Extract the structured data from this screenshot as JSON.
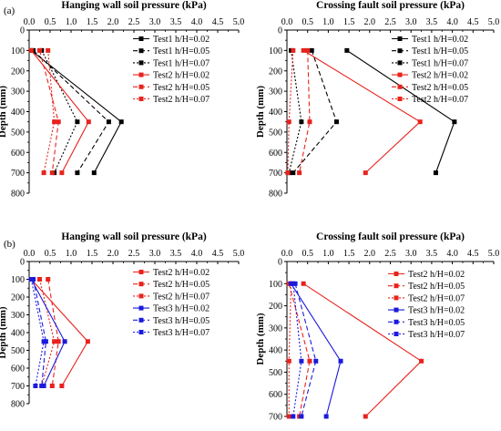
{
  "panels": [
    {
      "label": "(a)"
    },
    {
      "label": "(b)"
    }
  ],
  "chart_data": [
    {
      "type": "line",
      "title": "Hanging wall soil pressure (kPa)",
      "xlabel": "Hanging wall soil pressure (kPa)",
      "ylabel": "Depth (mm)",
      "xlim": [
        0,
        5
      ],
      "ylim": [
        0,
        800
      ],
      "xticks": [
        "0.0",
        "0.5",
        "1.0",
        "1.5",
        "2.0",
        "2.5",
        "3.0",
        "3.5",
        "4.0",
        "4.5",
        "5.0"
      ],
      "yticks": [
        "0",
        "100",
        "200",
        "300",
        "400",
        "500",
        "600",
        "700",
        "800"
      ],
      "legend_position": "top-right",
      "series": [
        {
          "name": "Test1 h/H=0.02",
          "color": "#000000",
          "dash": "solid",
          "x": [
            0.05,
            2.2,
            1.55
          ],
          "y": [
            100,
            450,
            700
          ]
        },
        {
          "name": "Test1 h/H=0.05",
          "color": "#000000",
          "dash": "dashed",
          "x": [
            0.1,
            1.9,
            1.15
          ],
          "y": [
            100,
            450,
            700
          ]
        },
        {
          "name": "Test1 h/H=0.07",
          "color": "#000000",
          "dash": "dotted",
          "x": [
            0.3,
            1.15,
            0.6
          ],
          "y": [
            100,
            450,
            700
          ]
        },
        {
          "name": "Test2 h/H=0.02",
          "color": "#e8221c",
          "dash": "solid",
          "x": [
            0.05,
            1.42,
            0.78
          ],
          "y": [
            100,
            450,
            700
          ]
        },
        {
          "name": "Test2 h/H=0.05",
          "color": "#e8221c",
          "dash": "dashed",
          "x": [
            0.25,
            0.7,
            0.55
          ],
          "y": [
            100,
            450,
            700
          ]
        },
        {
          "name": "Test2 h/H=0.07",
          "color": "#e8221c",
          "dash": "dotted",
          "x": [
            0.45,
            0.6,
            0.35
          ],
          "y": [
            100,
            450,
            700
          ]
        }
      ]
    },
    {
      "type": "line",
      "title": "Crossing fault soil pressure (kPa)",
      "xlabel": "Crossing fault soil pressure (kPa)",
      "ylabel": "Depth (mm)",
      "xlim": [
        0,
        5
      ],
      "ylim": [
        0,
        800
      ],
      "xticks": [
        "0.0",
        "0.5",
        "1.0",
        "1.5",
        "2.0",
        "2.5",
        "3.0",
        "3.5",
        "4.0",
        "4.5",
        "5.0"
      ],
      "yticks": [
        "0",
        "100",
        "200",
        "300",
        "400",
        "500",
        "600",
        "700",
        "800"
      ],
      "legend_position": "top-right",
      "series": [
        {
          "name": "Test1 h/H=0.02",
          "color": "#000000",
          "dash": "solid",
          "x": [
            1.45,
            4.05,
            3.6
          ],
          "y": [
            100,
            450,
            700
          ]
        },
        {
          "name": "Test1 h/H=0.05",
          "color": "#000000",
          "dash": "dashed",
          "x": [
            0.6,
            1.2,
            0.15
          ],
          "y": [
            100,
            450,
            700
          ]
        },
        {
          "name": "Test1 h/H=0.07",
          "color": "#000000",
          "dash": "dotted",
          "x": [
            0.1,
            0.35,
            0.05
          ],
          "y": [
            100,
            450,
            700
          ]
        },
        {
          "name": "Test2 h/H=0.02",
          "color": "#e8221c",
          "dash": "solid",
          "x": [
            0.4,
            3.22,
            1.9
          ],
          "y": [
            100,
            450,
            700
          ]
        },
        {
          "name": "Test2 h/H=0.05",
          "color": "#e8221c",
          "dash": "dashed",
          "x": [
            0.5,
            0.55,
            0.3
          ],
          "y": [
            100,
            450,
            700
          ]
        },
        {
          "name": "Test2 h/H=0.07",
          "color": "#e8221c",
          "dash": "dotted",
          "x": [
            0.15,
            0.05,
            0.02
          ],
          "y": [
            100,
            450,
            700
          ]
        }
      ]
    },
    {
      "type": "line",
      "title": "Hanging wall soil pressure (kPa)",
      "xlabel": "Hanging wall soil pressure (kPa)",
      "ylabel": "Depth (mm)",
      "xlim": [
        0,
        5
      ],
      "ylim": [
        0,
        800
      ],
      "xticks": [
        "0.0",
        "0.5",
        "1.0",
        "1.5",
        "2.0",
        "2.5",
        "3.0",
        "3.5",
        "4.0",
        "4.5",
        "5.0"
      ],
      "yticks": [
        "0",
        "100",
        "200",
        "300",
        "400",
        "500",
        "600",
        "700",
        "800"
      ],
      "legend_position": "top-right",
      "series": [
        {
          "name": "Test2 h/H=0.02",
          "color": "#e8221c",
          "dash": "solid",
          "x": [
            0.05,
            1.4,
            0.78
          ],
          "y": [
            100,
            450,
            700
          ]
        },
        {
          "name": "Test2 h/H=0.05",
          "color": "#e8221c",
          "dash": "dashed",
          "x": [
            0.45,
            0.7,
            0.55
          ],
          "y": [
            100,
            450,
            700
          ]
        },
        {
          "name": "Test2 h/H=0.07",
          "color": "#e8221c",
          "dash": "dotted",
          "x": [
            0.25,
            0.6,
            0.3
          ],
          "y": [
            100,
            450,
            700
          ]
        },
        {
          "name": "Test3 h/H=0.02",
          "color": "#1a1adc",
          "dash": "solid",
          "x": [
            0.05,
            0.85,
            0.35
          ],
          "y": [
            100,
            450,
            700
          ]
        },
        {
          "name": "Test3 h/H=0.05",
          "color": "#1a1adc",
          "dash": "dashed",
          "x": [
            0.1,
            0.4,
            0.3
          ],
          "y": [
            100,
            450,
            700
          ]
        },
        {
          "name": "Test3 h/H=0.07",
          "color": "#1a1adc",
          "dash": "dotted",
          "x": [
            0.05,
            0.35,
            0.15
          ],
          "y": [
            100,
            450,
            700
          ]
        }
      ]
    },
    {
      "type": "line",
      "title": "Crossing fault soil pressure (kPa)",
      "xlabel": "Crossing fault soil pressure (kPa)",
      "ylabel": "Depth (mm)",
      "xlim": [
        0,
        5
      ],
      "ylim": [
        0,
        700
      ],
      "xticks": [
        "0.0",
        "0.5",
        "1.0",
        "1.5",
        "2.0",
        "2.5",
        "3.0",
        "3.5",
        "4.0",
        "4.5",
        "5.0"
      ],
      "yticks": [
        "0",
        "100",
        "200",
        "300",
        "400",
        "500",
        "600",
        "700"
      ],
      "legend_position": "top-right",
      "series": [
        {
          "name": "Test2 h/H=0.02",
          "color": "#e8221c",
          "dash": "solid",
          "x": [
            0.4,
            3.25,
            1.9
          ],
          "y": [
            100,
            450,
            700
          ]
        },
        {
          "name": "Test2 h/H=0.05",
          "color": "#e8221c",
          "dash": "dashed",
          "x": [
            0.05,
            0.55,
            0.3
          ],
          "y": [
            100,
            450,
            700
          ]
        },
        {
          "name": "Test2 h/H=0.07",
          "color": "#e8221c",
          "dash": "dotted",
          "x": [
            0.1,
            0.05,
            0.05
          ],
          "y": [
            100,
            450,
            700
          ]
        },
        {
          "name": "Test3 h/H=0.02",
          "color": "#1a1adc",
          "dash": "solid",
          "x": [
            0.1,
            1.3,
            0.95
          ],
          "y": [
            100,
            450,
            700
          ]
        },
        {
          "name": "Test3 h/H=0.05",
          "color": "#1a1adc",
          "dash": "dashed",
          "x": [
            0.2,
            0.7,
            0.35
          ],
          "y": [
            100,
            450,
            700
          ]
        },
        {
          "name": "Test3 h/H=0.07",
          "color": "#1a1adc",
          "dash": "dotted",
          "x": [
            0.15,
            0.35,
            0.15
          ],
          "y": [
            100,
            450,
            700
          ]
        }
      ]
    }
  ]
}
